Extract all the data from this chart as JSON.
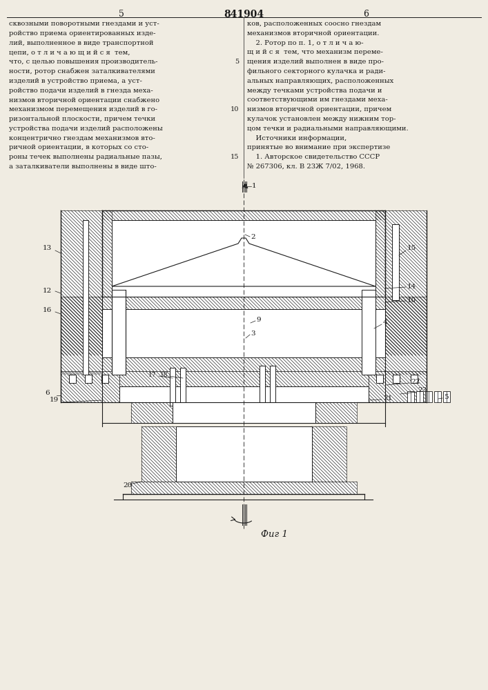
{
  "title": "841904",
  "page_left": "5",
  "page_right": "6",
  "fig_label": "Фиг 1",
  "bg_color": "#f0ece2",
  "line_color": "#1a1a1a",
  "left_lines": [
    "сквозными поворотными гнездами и уст-",
    "ройство приема ориентированных изде-",
    "лий, выполненное в виде транспортной",
    "цепи, о т л и ч а ю щ и й с я  тем,",
    "что, с целью повышения производитель-",
    "ности, ротор снабжен заталкивателями",
    "изделий в устройство приема, а уст-",
    "ройство подачи изделий в гнезда меха-",
    "низмов вторичной ориентации снабжено",
    "механизмом перемещения изделий в го-",
    "ризонтальной плоскости, причем течки",
    "устройства подачи изделий расположены",
    "концентрично гнездам механизмов вто-",
    "ричной ориентации, в которых со сто-",
    "роны течек выполнены радиальные пазы,",
    "а заталкиватели выполнены в виде што-"
  ],
  "right_lines": [
    "ков, расположенных соосно гнездам",
    "механизмов вторичной ориентации.",
    "    2. Ротор по п. 1, о т л и ч а ю-",
    "щ и й с я  тем, что механизм переме-",
    "щения изделий выполнен в виде про-",
    "фильного секторного кулачка и ради-",
    "альных направляющих, расположенных",
    "между течками устройства подачи и",
    "соответствующими им гнездами меха-",
    "низмов вторичной ориентации, причем",
    "кулачок установлен между нижним тор-",
    "цом течки и радиальными направляющими.",
    "    Источники информации,",
    "принятые во внимание при экспертизе",
    "    1. Авторское свидетельство СССР",
    "№ 267306, кл. В 23Ж 7/02, 1968."
  ]
}
